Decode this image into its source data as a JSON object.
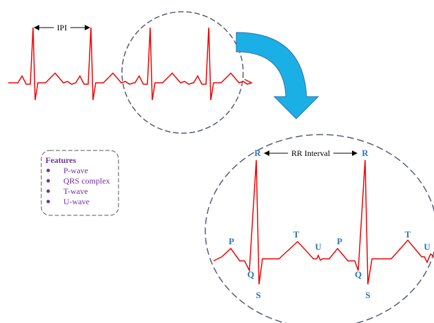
{
  "top_signal": {
    "interval_label": "IPI"
  },
  "zoom": {
    "interval_label": "RR Interval",
    "wave_labels": [
      "R",
      "R",
      "P",
      "Q",
      "S",
      "T",
      "U",
      "P",
      "Q",
      "S",
      "T",
      "U"
    ]
  },
  "features": {
    "title": "Features",
    "items": [
      "P-wave",
      "QRS complex",
      "T-wave",
      "U-wave"
    ]
  }
}
